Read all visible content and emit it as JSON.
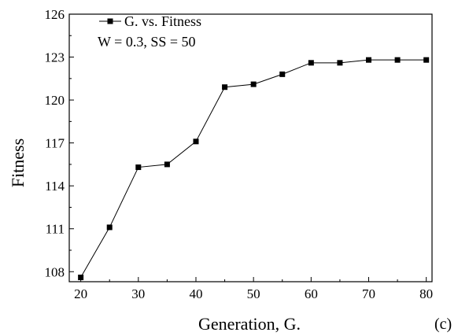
{
  "chart_data": {
    "type": "line",
    "xlabel": "Generation, G.",
    "ylabel": "Fitness",
    "xlim": [
      18,
      81
    ],
    "ylim": [
      107.3,
      126
    ],
    "x_ticks": [
      20,
      30,
      40,
      50,
      60,
      70,
      80
    ],
    "y_ticks": [
      108,
      111,
      114,
      117,
      120,
      123,
      126
    ],
    "series": [
      {
        "name": "G. vs. Fitness",
        "x": [
          20,
          25,
          30,
          35,
          40,
          45,
          50,
          55,
          60,
          65,
          70,
          75,
          80
        ],
        "y": [
          107.6,
          111.1,
          115.3,
          115.5,
          117.1,
          120.9,
          121.1,
          121.8,
          122.6,
          122.6,
          122.8,
          122.8,
          122.8
        ]
      }
    ],
    "annotation": "W = 0.3, SS = 50",
    "panel_label": "(c)",
    "legend_position": "top-left",
    "grid": false,
    "marker": "square",
    "color": "#000000"
  }
}
